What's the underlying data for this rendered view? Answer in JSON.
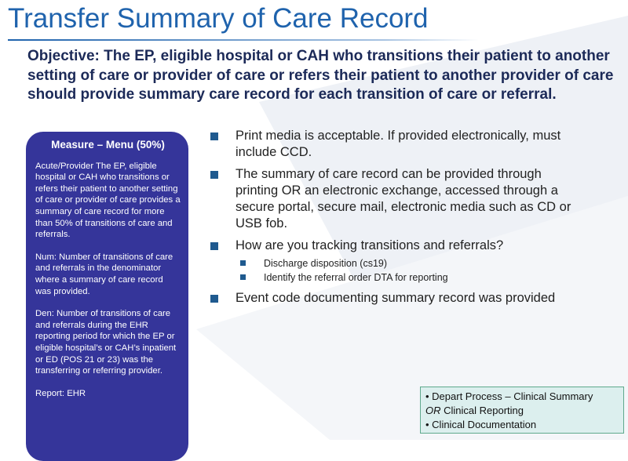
{
  "title": "Transfer Summary of Care Record",
  "objective": "Objective: The EP, eligible hospital or CAH who transitions their patient to another setting of care or provider of care or refers their patient to another provider of care should provide summary care record for each transition of care or referral.",
  "measure": {
    "heading": "Measure – Menu (50%)",
    "sections": [
      {
        "label": "Acute/Provider",
        "text": "The EP, eligible hospital or CAH who transitions or refers their patient to another setting of care or provider of care provides a summary of care record for more than 50% of transitions of care and referrals."
      },
      {
        "label": "Num:",
        "text": "Number of transitions of care and referrals in the denominator where a summary of care record was provided."
      },
      {
        "label": "Den:",
        "text": "Number of transitions of care and referrals during the EHR reporting period for which the EP or eligible hospital’s or CAH’s inpatient or ED (POS 21 or 23) was the transferring or referring provider."
      },
      {
        "label": "Report:",
        "text": "EHR"
      }
    ]
  },
  "bullets": [
    {
      "text": "Print media is acceptable.  If provided electronically, must include CCD."
    },
    {
      "text": "The summary of care record can be provided through printing OR an electronic exchange, accessed through a secure portal, secure mail, electronic media such as CD or USB fob."
    },
    {
      "text": "How are you tracking transitions and referrals?",
      "sub": [
        "Discharge disposition (cs19)",
        "Identify the referral order DTA for reporting"
      ]
    },
    {
      "text": "Event code documenting summary record was provided"
    }
  ],
  "note": {
    "line1": "• Depart Process – Clinical Summary",
    "line2_em": "OR",
    "line2": "Clinical Reporting",
    "line3": "• Clinical Documentation"
  }
}
